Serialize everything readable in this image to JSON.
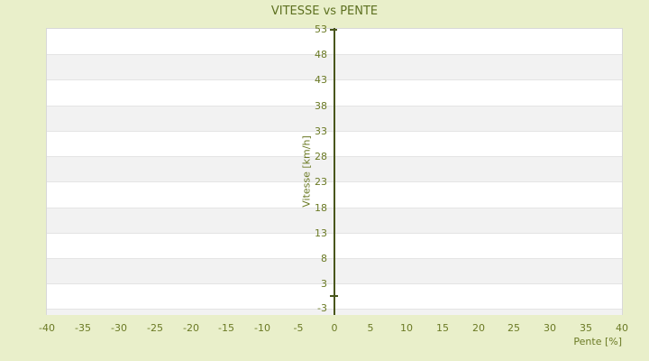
{
  "chart": {
    "title": "VITESSE vs PENTE"
  },
  "chart_data": {
    "type": "scatter",
    "title": "VITESSE vs PENTE",
    "xlabel": "Pente [%]",
    "ylabel": "Vitesse [km/h]",
    "xlim": [
      -40,
      40
    ],
    "ylim": [
      -3,
      53
    ],
    "x_ticks": [
      -40,
      -35,
      -30,
      -25,
      -20,
      -15,
      -10,
      -5,
      0,
      5,
      10,
      15,
      20,
      25,
      30,
      35,
      40
    ],
    "y_ticks": [
      53,
      48,
      43,
      38,
      33,
      28,
      23,
      18,
      13,
      8,
      3,
      -3
    ],
    "band_interval": 5,
    "points": [
      [
        0,
        0.5
      ]
    ],
    "marker": "dash",
    "legend": "none",
    "grid": "horizontal-bands",
    "colors": {
      "background": "#e9efca",
      "band_light": "#ffffff",
      "band_dark": "#f2f2f2",
      "band_separator": "#e4e4e4",
      "plot_border": "#d8d8d8",
      "axis_line": "#49561b",
      "tick_text": "#6b7a25",
      "title_text": "#5d7020"
    }
  }
}
